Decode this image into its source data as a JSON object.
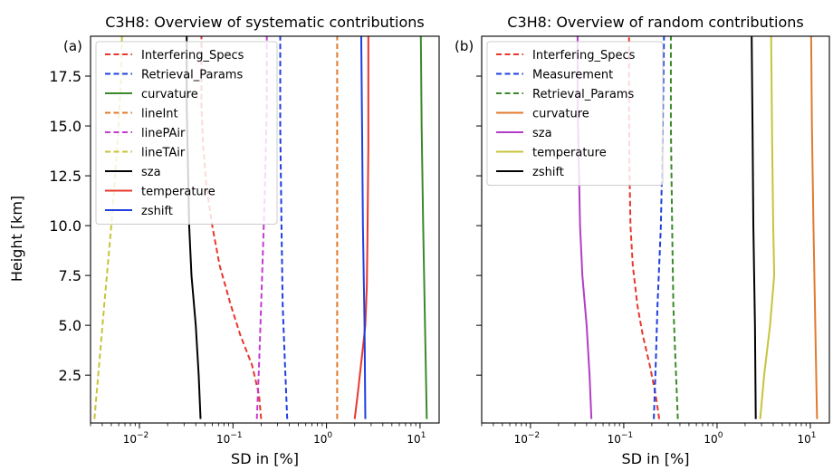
{
  "chart_data": [
    {
      "type": "line",
      "panel_label": "(a)",
      "title": "C3H8: Overview of systematic contributions",
      "xlabel": "SD in [%]",
      "ylabel": "Height [km]",
      "xscale": "log",
      "xlim": [
        0.003,
        16
      ],
      "ylim": [
        0.1,
        19.5
      ],
      "x_ticks": [
        {
          "value": 0.01,
          "base": "10",
          "exp": "−2"
        },
        {
          "value": 0.1,
          "base": "10",
          "exp": "−1"
        },
        {
          "value": 1,
          "base": "10",
          "exp": "0"
        },
        {
          "value": 10,
          "base": "10",
          "exp": "1"
        }
      ],
      "y_ticks": [
        {
          "value": 2.5,
          "label": "2.5"
        },
        {
          "value": 5.0,
          "label": "5.0"
        },
        {
          "value": 7.5,
          "label": "7.5"
        },
        {
          "value": 10.0,
          "label": "10.0"
        },
        {
          "value": 12.5,
          "label": "12.5"
        },
        {
          "value": 15.0,
          "label": "15.0"
        },
        {
          "value": 17.5,
          "label": "17.5"
        }
      ],
      "legend_position": "top-left",
      "series": [
        {
          "name": "Interfering_Specs",
          "color": "#e8372c",
          "style": "dashed",
          "points": [
            [
              0.2,
              0.3
            ],
            [
              0.19,
              1.5
            ],
            [
              0.16,
              3.0
            ],
            [
              0.12,
              4.5
            ],
            [
              0.095,
              6.0
            ],
            [
              0.072,
              8.0
            ],
            [
              0.06,
              10.0
            ],
            [
              0.052,
              12.0
            ],
            [
              0.048,
              14.0
            ],
            [
              0.046,
              16.0
            ],
            [
              0.046,
              18.0
            ],
            [
              0.046,
              19.5
            ]
          ]
        },
        {
          "name": "Retrieval_Params",
          "color": "#1f3fe0",
          "style": "dashed",
          "points": [
            [
              0.38,
              0.3
            ],
            [
              0.36,
              3.0
            ],
            [
              0.34,
              6.0
            ],
            [
              0.33,
              10.0
            ],
            [
              0.32,
              15.0
            ],
            [
              0.32,
              19.5
            ]
          ]
        },
        {
          "name": "curvature",
          "color": "#3a8a2a",
          "style": "solid",
          "points": [
            [
              11.8,
              0.3
            ],
            [
              11.3,
              5.0
            ],
            [
              10.8,
              10.0
            ],
            [
              10.4,
              15.0
            ],
            [
              10.2,
              19.5
            ]
          ]
        },
        {
          "name": "lineInt",
          "color": "#e07b2e",
          "style": "dashed",
          "points": [
            [
              1.3,
              0.3
            ],
            [
              1.3,
              19.5
            ]
          ]
        },
        {
          "name": "linePAir",
          "color": "#c43bd0",
          "style": "dashed",
          "points": [
            [
              0.18,
              0.3
            ],
            [
              0.19,
              3.0
            ],
            [
              0.2,
              6.0
            ],
            [
              0.21,
              9.0
            ],
            [
              0.22,
              12.0
            ],
            [
              0.23,
              16.0
            ],
            [
              0.23,
              19.5
            ]
          ]
        },
        {
          "name": "lineTAir",
          "color": "#c6c43a",
          "style": "dashed",
          "points": [
            [
              0.0033,
              0.3
            ],
            [
              0.0037,
              3.0
            ],
            [
              0.0042,
              6.0
            ],
            [
              0.005,
              10.0
            ],
            [
              0.0058,
              14.0
            ],
            [
              0.0063,
              17.0
            ],
            [
              0.0065,
              19.5
            ]
          ]
        },
        {
          "name": "sza",
          "color": "#000000",
          "style": "solid",
          "points": [
            [
              0.045,
              0.3
            ],
            [
              0.043,
              2.5
            ],
            [
              0.04,
              5.0
            ],
            [
              0.036,
              7.5
            ],
            [
              0.034,
              10.0
            ],
            [
              0.033,
              13.0
            ],
            [
              0.032,
              16.0
            ],
            [
              0.032,
              19.5
            ]
          ]
        },
        {
          "name": "temperature",
          "color": "#e8372c",
          "style": "solid",
          "points": [
            [
              2.0,
              0.3
            ],
            [
              2.15,
              1.5
            ],
            [
              2.4,
              3.5
            ],
            [
              2.6,
              5.0
            ],
            [
              2.7,
              7.0
            ],
            [
              2.75,
              10.0
            ],
            [
              2.8,
              14.0
            ],
            [
              2.8,
              19.5
            ]
          ]
        },
        {
          "name": "zshift",
          "color": "#1f3fe0",
          "style": "solid",
          "points": [
            [
              2.6,
              0.3
            ],
            [
              2.55,
              5.0
            ],
            [
              2.45,
              10.0
            ],
            [
              2.4,
              15.0
            ],
            [
              2.35,
              19.5
            ]
          ]
        }
      ]
    },
    {
      "type": "line",
      "panel_label": "(b)",
      "title": "C3H8: Overview of random contributions",
      "xlabel": "SD in [%]",
      "ylabel": "",
      "xscale": "log",
      "xlim": [
        0.003,
        16
      ],
      "ylim": [
        0.1,
        19.5
      ],
      "x_ticks": [
        {
          "value": 0.01,
          "base": "10",
          "exp": "−2"
        },
        {
          "value": 0.1,
          "base": "10",
          "exp": "−1"
        },
        {
          "value": 1,
          "base": "10",
          "exp": "0"
        },
        {
          "value": 10,
          "base": "10",
          "exp": "1"
        }
      ],
      "y_ticks": [],
      "legend_position": "top-left",
      "series": [
        {
          "name": "Interfering_Specs",
          "color": "#e8372c",
          "style": "dashed",
          "points": [
            [
              0.24,
              0.3
            ],
            [
              0.22,
              1.5
            ],
            [
              0.19,
              3.0
            ],
            [
              0.16,
              4.5
            ],
            [
              0.14,
              6.0
            ],
            [
              0.125,
              8.0
            ],
            [
              0.118,
              10.0
            ],
            [
              0.115,
              13.0
            ],
            [
              0.114,
              16.0
            ],
            [
              0.114,
              19.5
            ]
          ]
        },
        {
          "name": "Measurement",
          "color": "#1f3fe0",
          "style": "dashed",
          "points": [
            [
              0.21,
              0.3
            ],
            [
              0.22,
              3.0
            ],
            [
              0.23,
              6.0
            ],
            [
              0.25,
              10.0
            ],
            [
              0.26,
              14.0
            ],
            [
              0.27,
              19.5
            ]
          ]
        },
        {
          "name": "Retrieval_Params",
          "color": "#3a8a2a",
          "style": "dashed",
          "points": [
            [
              0.38,
              0.3
            ],
            [
              0.36,
              3.0
            ],
            [
              0.34,
              6.0
            ],
            [
              0.33,
              10.0
            ],
            [
              0.32,
              15.0
            ],
            [
              0.32,
              19.5
            ]
          ]
        },
        {
          "name": "curvature",
          "color": "#e07b2e",
          "style": "solid",
          "points": [
            [
              11.8,
              0.3
            ],
            [
              11.3,
              5.0
            ],
            [
              10.8,
              10.0
            ],
            [
              10.4,
              15.0
            ],
            [
              10.2,
              19.5
            ]
          ]
        },
        {
          "name": "sza",
          "color": "#b23ec6",
          "style": "solid",
          "points": [
            [
              0.045,
              0.3
            ],
            [
              0.043,
              2.5
            ],
            [
              0.04,
              5.0
            ],
            [
              0.036,
              7.5
            ],
            [
              0.034,
              10.0
            ],
            [
              0.033,
              13.0
            ],
            [
              0.032,
              16.0
            ],
            [
              0.032,
              19.5
            ]
          ]
        },
        {
          "name": "temperature",
          "color": "#c6c43a",
          "style": "solid",
          "points": [
            [
              2.9,
              0.3
            ],
            [
              3.2,
              2.5
            ],
            [
              3.7,
              5.0
            ],
            [
              4.1,
              7.5
            ],
            [
              4.0,
              10.0
            ],
            [
              3.9,
              14.0
            ],
            [
              3.8,
              19.5
            ]
          ]
        },
        {
          "name": "zshift",
          "color": "#000000",
          "style": "solid",
          "points": [
            [
              2.6,
              0.3
            ],
            [
              2.55,
              5.0
            ],
            [
              2.45,
              10.0
            ],
            [
              2.4,
              15.0
            ],
            [
              2.35,
              19.5
            ]
          ]
        }
      ]
    }
  ]
}
